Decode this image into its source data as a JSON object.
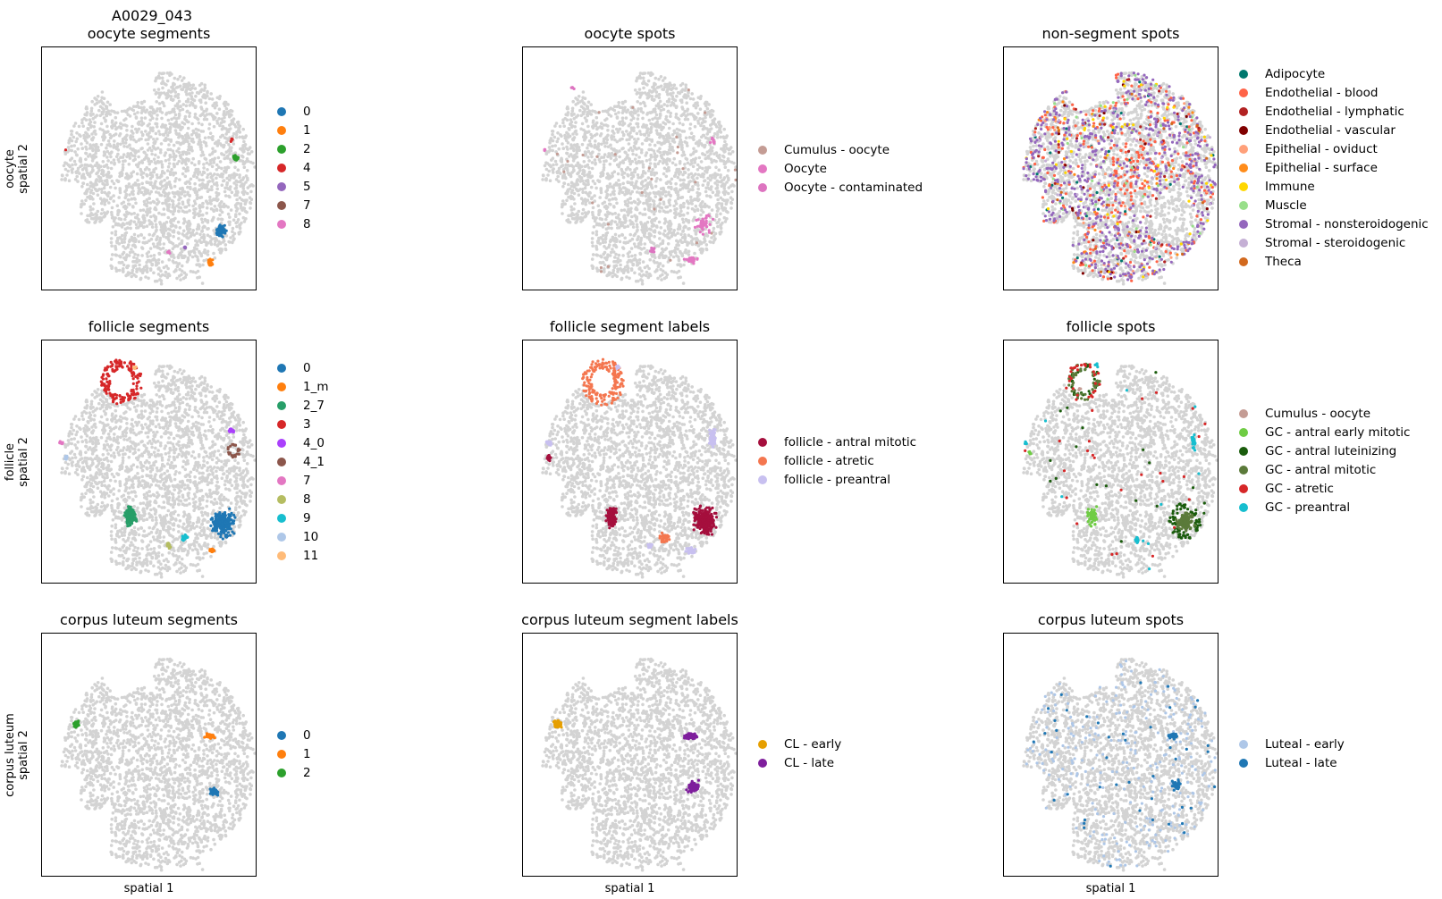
{
  "figure": {
    "sample_id": "A0029_043",
    "axis_common": {
      "xlabel": "spatial 1"
    }
  },
  "chart_data": [
    {
      "type": "scatter",
      "title": "oocyte segments",
      "ylabel": "oocyte\nspatial 2",
      "xlabel": "",
      "background_color": "#d3d3d3",
      "legend": {
        "position": "right",
        "entries": [
          {
            "label": "0",
            "color": "#1f77b4"
          },
          {
            "label": "1",
            "color": "#ff7f0e"
          },
          {
            "label": "2",
            "color": "#2ca02c"
          },
          {
            "label": "4",
            "color": "#d62728"
          },
          {
            "label": "5",
            "color": "#9467bd"
          },
          {
            "label": "7",
            "color": "#8c564b"
          },
          {
            "label": "8",
            "color": "#e377c2"
          }
        ]
      }
    },
    {
      "type": "scatter",
      "title": "oocyte spots",
      "ylabel": "",
      "xlabel": "",
      "background_color": "#d3d3d3",
      "legend": {
        "position": "right",
        "entries": [
          {
            "label": "Cumulus - oocyte",
            "color": "#c49c94"
          },
          {
            "label": "Oocyte",
            "color": "#e377c2"
          },
          {
            "label": "Oocyte - contaminated",
            "color": "#dd74c0"
          }
        ]
      }
    },
    {
      "type": "scatter",
      "title": "non-segment spots",
      "ylabel": "",
      "xlabel": "",
      "background_color": "#d3d3d3",
      "legend": {
        "position": "right",
        "entries": [
          {
            "label": "Adipocyte",
            "color": "#00786e"
          },
          {
            "label": "Endothelial - blood",
            "color": "#ff6347"
          },
          {
            "label": "Endothelial - lymphatic",
            "color": "#b22222"
          },
          {
            "label": "Endothelial - vascular",
            "color": "#800000"
          },
          {
            "label": "Epithelial - oviduct",
            "color": "#ffa07a"
          },
          {
            "label": "Epithelial - surface",
            "color": "#ff8c1a"
          },
          {
            "label": "Immune",
            "color": "#ffd700"
          },
          {
            "label": "Muscle",
            "color": "#98df8a"
          },
          {
            "label": "Stromal - nonsteroidogenic",
            "color": "#9467bd"
          },
          {
            "label": "Stromal - steroidogenic",
            "color": "#c5b0d5"
          },
          {
            "label": "Theca",
            "color": "#d2691e"
          }
        ]
      }
    },
    {
      "type": "scatter",
      "title": "follicle segments",
      "ylabel": "follicle\nspatial 2",
      "xlabel": "",
      "background_color": "#d3d3d3",
      "legend": {
        "position": "right",
        "entries": [
          {
            "label": "0",
            "color": "#1f77b4"
          },
          {
            "label": "1_m",
            "color": "#ff7f0e"
          },
          {
            "label": "2_7",
            "color": "#279e68"
          },
          {
            "label": "3",
            "color": "#d62728"
          },
          {
            "label": "4_0",
            "color": "#aa40fc"
          },
          {
            "label": "4_1",
            "color": "#8c564b"
          },
          {
            "label": "7",
            "color": "#e377c2"
          },
          {
            "label": "8",
            "color": "#b5bd61"
          },
          {
            "label": "9",
            "color": "#17becf"
          },
          {
            "label": "10",
            "color": "#aec7e8"
          },
          {
            "label": "11",
            "color": "#ffbb78"
          }
        ]
      }
    },
    {
      "type": "scatter",
      "title": "follicle segment labels",
      "ylabel": "",
      "xlabel": "",
      "background_color": "#d3d3d3",
      "legend": {
        "position": "right",
        "entries": [
          {
            "label": "follicle - antral mitotic",
            "color": "#a50f3d"
          },
          {
            "label": "follicle - atretic",
            "color": "#f4764f"
          },
          {
            "label": "follicle - preantral",
            "color": "#c8c0f0"
          }
        ]
      }
    },
    {
      "type": "scatter",
      "title": "follicle spots",
      "ylabel": "",
      "xlabel": "",
      "background_color": "#d3d3d3",
      "legend": {
        "position": "right",
        "entries": [
          {
            "label": "Cumulus - oocyte",
            "color": "#c49c94"
          },
          {
            "label": "GC - antral early mitotic",
            "color": "#6fcc44"
          },
          {
            "label": "GC - antral luteinizing",
            "color": "#1a5c0c"
          },
          {
            "label": "GC - antral mitotic",
            "color": "#5b7a3a"
          },
          {
            "label": "GC - atretic",
            "color": "#d62728"
          },
          {
            "label": "GC - preantral",
            "color": "#17becf"
          }
        ]
      }
    },
    {
      "type": "scatter",
      "title": "corpus luteum segments",
      "ylabel": "corpus luteum\nspatial 2",
      "xlabel": "spatial 1",
      "background_color": "#d3d3d3",
      "legend": {
        "position": "right",
        "entries": [
          {
            "label": "0",
            "color": "#1f77b4"
          },
          {
            "label": "1",
            "color": "#ff7f0e"
          },
          {
            "label": "2",
            "color": "#2ca02c"
          }
        ]
      }
    },
    {
      "type": "scatter",
      "title": "corpus luteum segment labels",
      "ylabel": "",
      "xlabel": "spatial 1",
      "background_color": "#d3d3d3",
      "legend": {
        "position": "right",
        "entries": [
          {
            "label": "CL - early",
            "color": "#e69f00"
          },
          {
            "label": "CL - late",
            "color": "#7e1e9c"
          }
        ]
      }
    },
    {
      "type": "scatter",
      "title": "corpus luteum spots",
      "ylabel": "",
      "xlabel": "spatial 1",
      "background_color": "#d3d3d3",
      "legend": {
        "position": "right",
        "entries": [
          {
            "label": "Luteal - early",
            "color": "#aec7e8"
          },
          {
            "label": "Luteal - late",
            "color": "#1f77b4"
          }
        ]
      }
    }
  ]
}
